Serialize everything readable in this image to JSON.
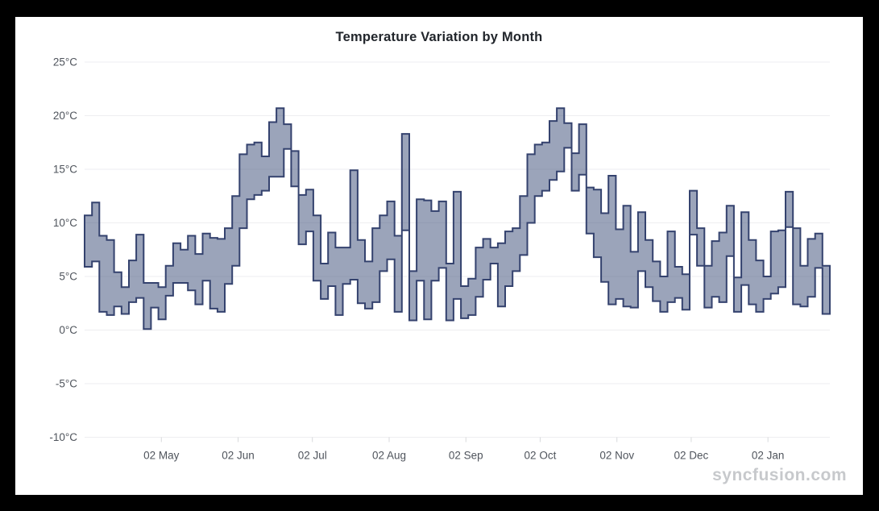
{
  "page": {
    "background": "#000000",
    "surface_background": "#ffffff"
  },
  "branding": {
    "watermark": "syncfusion.com",
    "watermark_color": "#c7c9cc"
  },
  "chart_data": {
    "type": "range_step_area",
    "title": "Temperature Variation by Month",
    "legend": "none",
    "grid": "horizontal-only",
    "x_axis": {
      "labels": [
        "02 May",
        "02 Jun",
        "02 Jul",
        "02 Aug",
        "02 Sep",
        "02 Oct",
        "02 Nov",
        "02 Dec",
        "02 Jan"
      ],
      "tick_days": [
        31,
        62,
        92,
        123,
        154,
        184,
        215,
        245,
        276
      ],
      "domain_days": [
        0,
        301
      ]
    },
    "y_axis": {
      "unit": "°C",
      "min": -10,
      "max": 25,
      "step": 5,
      "tick_labels": [
        "25°C",
        "20°C",
        "15°C",
        "10°C",
        "5°C",
        "0°C",
        "-5°C",
        "-10°C"
      ]
    },
    "style": {
      "fill": "rgba(64,80,122,0.52)",
      "stroke": "#34426e",
      "stroke_width": 2,
      "gridline": "#eeeef0",
      "axis_tick": "#d8dadc",
      "axis_label_color": "#4f545c",
      "title_color": "#21252b"
    },
    "series": [
      {
        "name": "temperature-range",
        "step_days": 2.98,
        "points": [
          {
            "h": 10.7,
            "l": 5.9
          },
          {
            "h": 11.9,
            "l": 6.4
          },
          {
            "h": 8.8,
            "l": 1.7
          },
          {
            "h": 8.4,
            "l": 1.4
          },
          {
            "h": 5.4,
            "l": 2.2
          },
          {
            "h": 4.0,
            "l": 1.5
          },
          {
            "h": 6.5,
            "l": 2.6
          },
          {
            "h": 8.9,
            "l": 3.0
          },
          {
            "h": 4.4,
            "l": 0.1
          },
          {
            "h": 4.4,
            "l": 2.1
          },
          {
            "h": 4.0,
            "l": 1.0
          },
          {
            "h": 6.0,
            "l": 3.2
          },
          {
            "h": 8.1,
            "l": 4.4
          },
          {
            "h": 7.5,
            "l": 4.4
          },
          {
            "h": 8.8,
            "l": 3.7
          },
          {
            "h": 7.1,
            "l": 2.4
          },
          {
            "h": 9.0,
            "l": 4.6
          },
          {
            "h": 8.6,
            "l": 2.0
          },
          {
            "h": 8.5,
            "l": 1.7
          },
          {
            "h": 9.5,
            "l": 4.3
          },
          {
            "h": 12.5,
            "l": 6.0
          },
          {
            "h": 16.4,
            "l": 9.5
          },
          {
            "h": 17.3,
            "l": 12.2
          },
          {
            "h": 17.5,
            "l": 12.6
          },
          {
            "h": 16.2,
            "l": 13.0
          },
          {
            "h": 19.4,
            "l": 14.3
          },
          {
            "h": 20.7,
            "l": 14.3
          },
          {
            "h": 19.2,
            "l": 16.9
          },
          {
            "h": 16.7,
            "l": 13.4
          },
          {
            "h": 12.6,
            "l": 8.0
          },
          {
            "h": 13.1,
            "l": 9.2
          },
          {
            "h": 10.7,
            "l": 4.6
          },
          {
            "h": 6.2,
            "l": 2.9
          },
          {
            "h": 9.1,
            "l": 4.1
          },
          {
            "h": 7.7,
            "l": 1.4
          },
          {
            "h": 7.7,
            "l": 4.3
          },
          {
            "h": 14.9,
            "l": 4.7
          },
          {
            "h": 8.4,
            "l": 2.5
          },
          {
            "h": 6.4,
            "l": 2.0
          },
          {
            "h": 9.5,
            "l": 2.6
          },
          {
            "h": 10.7,
            "l": 5.5
          },
          {
            "h": 12.0,
            "l": 6.6
          },
          {
            "h": 8.8,
            "l": 1.7
          },
          {
            "h": 18.3,
            "l": 9.3
          },
          {
            "h": 5.5,
            "l": 0.9
          },
          {
            "h": 12.2,
            "l": 4.6
          },
          {
            "h": 12.1,
            "l": 1.0
          },
          {
            "h": 11.1,
            "l": 4.6
          },
          {
            "h": 12.0,
            "l": 5.8
          },
          {
            "h": 6.2,
            "l": 0.9
          },
          {
            "h": 12.9,
            "l": 2.9
          },
          {
            "h": 4.1,
            "l": 1.1
          },
          {
            "h": 4.8,
            "l": 1.4
          },
          {
            "h": 7.7,
            "l": 3.1
          },
          {
            "h": 8.5,
            "l": 4.7
          },
          {
            "h": 7.7,
            "l": 6.2
          },
          {
            "h": 8.1,
            "l": 2.2
          },
          {
            "h": 9.2,
            "l": 4.1
          },
          {
            "h": 9.5,
            "l": 5.5
          },
          {
            "h": 12.5,
            "l": 7.0
          },
          {
            "h": 16.4,
            "l": 10.0
          },
          {
            "h": 17.3,
            "l": 12.5
          },
          {
            "h": 17.5,
            "l": 13.0
          },
          {
            "h": 19.5,
            "l": 14.0
          },
          {
            "h": 20.7,
            "l": 14.8
          },
          {
            "h": 19.3,
            "l": 17.0
          },
          {
            "h": 16.5,
            "l": 13.0
          },
          {
            "h": 19.2,
            "l": 14.5
          },
          {
            "h": 13.3,
            "l": 9.0
          },
          {
            "h": 13.1,
            "l": 6.8
          },
          {
            "h": 10.9,
            "l": 4.5
          },
          {
            "h": 14.4,
            "l": 2.4
          },
          {
            "h": 9.4,
            "l": 2.9
          },
          {
            "h": 11.6,
            "l": 2.2
          },
          {
            "h": 7.3,
            "l": 2.1
          },
          {
            "h": 11.0,
            "l": 5.5
          },
          {
            "h": 8.4,
            "l": 4.0
          },
          {
            "h": 6.4,
            "l": 2.7
          },
          {
            "h": 5.0,
            "l": 1.7
          },
          {
            "h": 9.2,
            "l": 2.6
          },
          {
            "h": 5.9,
            "l": 3.0
          },
          {
            "h": 5.2,
            "l": 1.9
          },
          {
            "h": 13.0,
            "l": 8.9
          },
          {
            "h": 9.5,
            "l": 6.0
          },
          {
            "h": 6.0,
            "l": 2.1
          },
          {
            "h": 8.3,
            "l": 3.1
          },
          {
            "h": 9.1,
            "l": 2.6
          },
          {
            "h": 11.6,
            "l": 6.9
          },
          {
            "h": 4.9,
            "l": 1.7
          },
          {
            "h": 11.0,
            "l": 4.2
          },
          {
            "h": 8.4,
            "l": 2.4
          },
          {
            "h": 6.5,
            "l": 1.7
          },
          {
            "h": 5.0,
            "l": 2.9
          },
          {
            "h": 9.2,
            "l": 3.4
          },
          {
            "h": 9.3,
            "l": 4.0
          },
          {
            "h": 12.9,
            "l": 9.6
          },
          {
            "h": 9.5,
            "l": 2.4
          },
          {
            "h": 6.0,
            "l": 2.2
          },
          {
            "h": 8.5,
            "l": 3.1
          },
          {
            "h": 9.0,
            "l": 5.8
          },
          {
            "h": 6.0,
            "l": 1.5
          }
        ]
      }
    ]
  }
}
